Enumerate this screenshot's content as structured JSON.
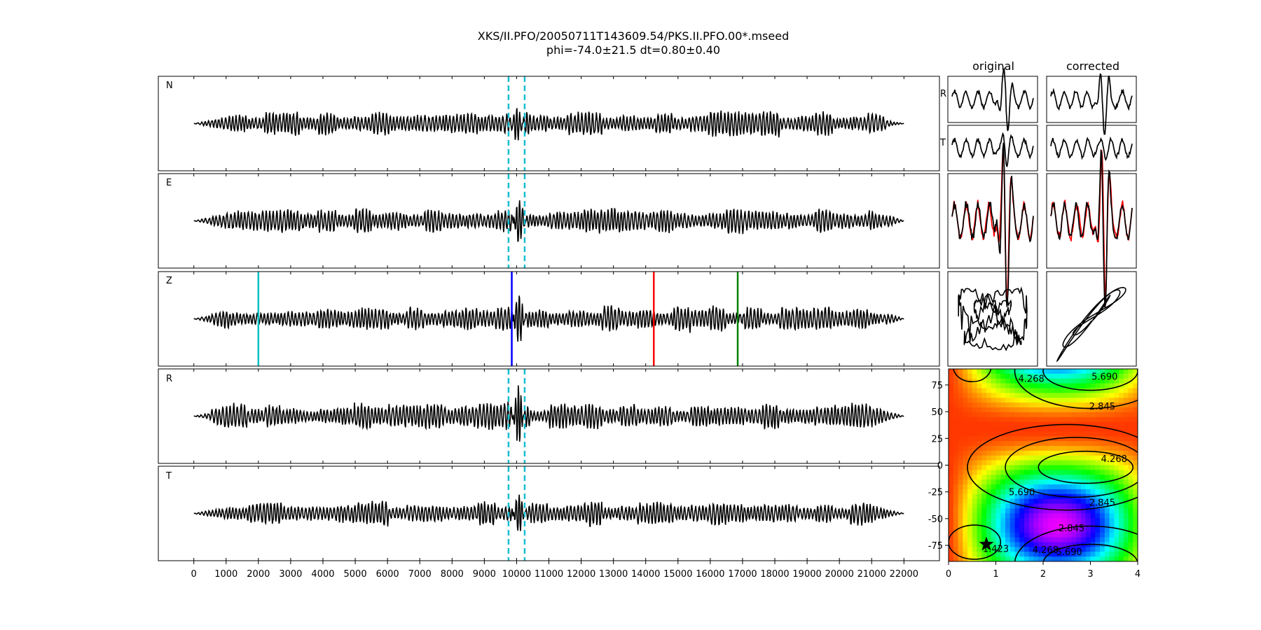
{
  "title": {
    "line1": "XKS/II.PFO/20050711T143609.54/PKS.II.PFO.00*.mseed",
    "line2": "phi=-74.0±21.5 dt=0.80±0.40"
  },
  "panel_titles": {
    "original": "original",
    "corrected": "corrected"
  },
  "colors": {
    "trace": "#000000",
    "window": "#17becf",
    "pick_cyan": "#00bfbf",
    "pick_blue": "#0000ff",
    "pick_red": "#ff0000",
    "pick_green": "#008000",
    "corrected_overlay": "#ff0000",
    "star": "#000000"
  },
  "chart_data": [
    {
      "type": "line",
      "name": "seismogram-traces",
      "channels": [
        "N",
        "E",
        "Z",
        "R",
        "T"
      ],
      "xlim": [
        -1100,
        23100
      ],
      "x_ticks": [
        0,
        1000,
        2000,
        3000,
        4000,
        5000,
        6000,
        7000,
        8000,
        9000,
        10000,
        11000,
        12000,
        13000,
        14000,
        15000,
        16000,
        17000,
        18000,
        19000,
        20000,
        21000,
        22000
      ],
      "trace_range": [
        0,
        22000
      ],
      "window_lines": [
        9750,
        10250
      ],
      "window_channels": [
        "N",
        "E",
        "R",
        "T"
      ],
      "z_picks": [
        {
          "x": 2000,
          "color": "#00bfbf"
        },
        {
          "x": 9850,
          "color": "#0000ff"
        },
        {
          "x": 14250,
          "color": "#ff0000"
        },
        {
          "x": 16850,
          "color": "#008000"
        }
      ]
    },
    {
      "type": "line",
      "name": "waveform-comparison",
      "panels": [
        "R",
        "T"
      ],
      "description_labels": [
        "R",
        "T"
      ]
    },
    {
      "type": "heatmap",
      "name": "error-surface",
      "xlim": [
        0,
        4
      ],
      "ylim": [
        -90,
        90
      ],
      "x_ticks": [
        0,
        1,
        2,
        3,
        4
      ],
      "y_ticks": [
        75,
        50,
        25,
        0,
        -25,
        -50,
        -75
      ],
      "contour_levels": [
        "1.423",
        "2.845",
        "4.268",
        "5.690"
      ],
      "best_fit": {
        "dt": 0.8,
        "phi": -74.0
      }
    }
  ]
}
